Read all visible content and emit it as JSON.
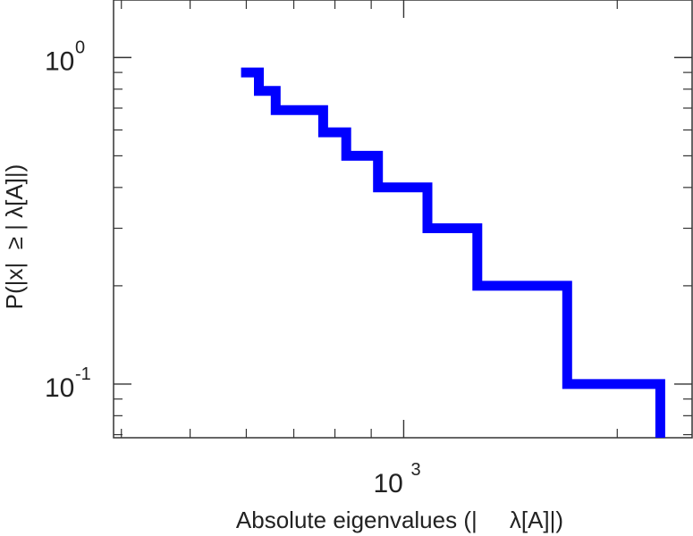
{
  "chart_data": {
    "type": "line",
    "step": true,
    "xscale": "log",
    "yscale": "log",
    "xlim": [
      390,
      2550
    ],
    "ylim": [
      0.0685,
      1.5
    ],
    "grid": false,
    "xlabel": "Absolute eigenvalues (|     λ[A]|)",
    "ylabel": "P(|x|  ≥ | λ[A]|)",
    "x_ticks": [
      {
        "value": 1000,
        "base": "10",
        "exp": "3"
      }
    ],
    "y_ticks": [
      {
        "value": 1.0,
        "base": "10",
        "exp": "0"
      },
      {
        "value": 0.1,
        "base": "10",
        "exp": "-1"
      }
    ],
    "series": [
      {
        "color": "#0000ff",
        "points": [
          {
            "x": 590,
            "y": 0.9
          },
          {
            "x": 625,
            "y": 0.9
          },
          {
            "x": 625,
            "y": 0.79
          },
          {
            "x": 660,
            "y": 0.79
          },
          {
            "x": 660,
            "y": 0.69
          },
          {
            "x": 770,
            "y": 0.69
          },
          {
            "x": 770,
            "y": 0.59
          },
          {
            "x": 830,
            "y": 0.59
          },
          {
            "x": 830,
            "y": 0.5
          },
          {
            "x": 920,
            "y": 0.5
          },
          {
            "x": 920,
            "y": 0.4
          },
          {
            "x": 1080,
            "y": 0.4
          },
          {
            "x": 1080,
            "y": 0.3
          },
          {
            "x": 1270,
            "y": 0.3
          },
          {
            "x": 1270,
            "y": 0.2
          },
          {
            "x": 1700,
            "y": 0.2
          },
          {
            "x": 1700,
            "y": 0.1
          },
          {
            "x": 2300,
            "y": 0.1
          },
          {
            "x": 2300,
            "y": 0.0685
          }
        ]
      }
    ]
  }
}
